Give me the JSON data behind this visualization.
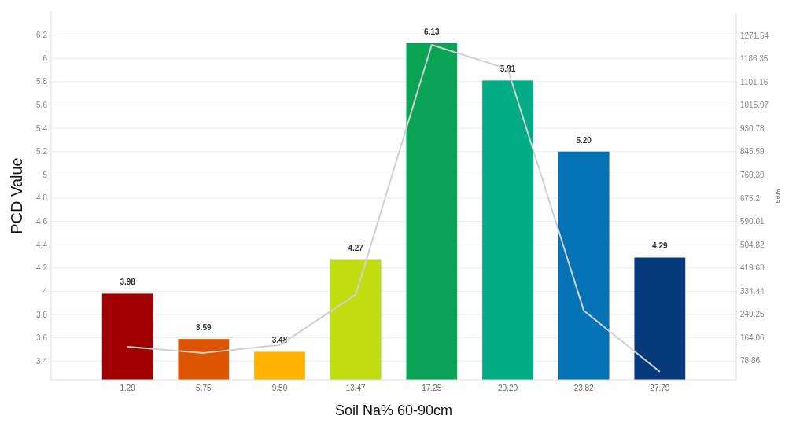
{
  "chart_data": {
    "type": "bar",
    "xlabel": "Soil Na% 60-90cm",
    "ylabel": "PCD Value",
    "y2label": "Area",
    "categories": [
      "1.29",
      "5.75",
      "9.50",
      "13.47",
      "17.25",
      "20.20",
      "23.82",
      "27.79"
    ],
    "series": [
      {
        "values": [
          3.98,
          3.59,
          3.48,
          4.27,
          6.13,
          5.81,
          5.2,
          4.29
        ],
        "colors": [
          "#a00000",
          "#dd5500",
          "#ffb300",
          "#c0dd10",
          "#0aa355",
          "#00ab85",
          "#0373b5",
          "#063a7a"
        ],
        "value_labels": [
          "3.98",
          "3.59",
          "3.48",
          "4.27",
          "6.13",
          "5.81",
          "5.20",
          "4.29"
        ]
      },
      {
        "type": "line",
        "axis": "y2",
        "color": "#d0d0d0",
        "values": [
          131,
          108,
          137,
          321,
          1237,
          1148,
          263,
          39
        ]
      }
    ],
    "ylim": [
      3.24,
      6.4
    ],
    "yticks": [
      3.4,
      3.6,
      3.8,
      4,
      4.2,
      4.4,
      4.6,
      4.8,
      5,
      5.2,
      5.4,
      5.6,
      5.8,
      6,
      6.2
    ],
    "y2lim": [
      9.7,
      1358
    ],
    "y2ticks": [
      78.86,
      164.06,
      249.25,
      334.44,
      419.63,
      504.82,
      590.01,
      675.2,
      760.39,
      845.59,
      930.78,
      1015.97,
      1101.16,
      1186.35,
      1271.54
    ],
    "grid": "y",
    "marker": "none",
    "line_style": "solid"
  }
}
